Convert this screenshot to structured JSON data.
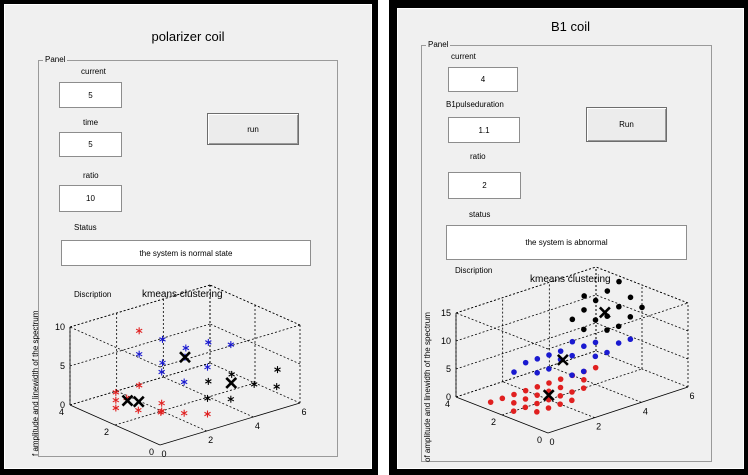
{
  "left_window": {
    "title": "polarizer coil",
    "panel_label": "Panel",
    "current_label": "current",
    "current_value": "5",
    "time_label": "time",
    "time_value": "5",
    "ratio_label": "ratio",
    "ratio_value": "10",
    "run_label": "run",
    "status_label": "Status",
    "status_value": "the system is normal state",
    "description_label": "Discription",
    "plot_title": "kmeans clustering",
    "ylabel": "f amplitude and linewidth of the spectrum"
  },
  "right_window": {
    "title": "B1 coil",
    "panel_label": "Panel",
    "current_label": "current",
    "current_value": "4",
    "pulse_label": "B1pulseduration",
    "pulse_value": "1.1",
    "ratio_label": "ratio",
    "ratio_value": "2",
    "run_label": "Run",
    "status_label": "status",
    "status_value": "the system is abnormal",
    "description_label": "Discription",
    "plot_title": "kmeans clustering",
    "ylabel": "of amplitude and linewidth of the spectrum"
  },
  "colors": {
    "red": "#e02020",
    "blue": "#1a1ad0",
    "black": "#000000"
  },
  "chart_data": [
    {
      "type": "scatter",
      "title": "kmeans clustering",
      "marker": "asterisk",
      "zlabel": "f amplitude and linewidth of the spectrum",
      "z_ticks": [
        "0",
        "5",
        "10"
      ],
      "x_ticks": [
        "0",
        "2",
        "4",
        "6"
      ],
      "y_ticks": [
        "0",
        "2",
        "4"
      ],
      "xlim": [
        0,
        6
      ],
      "ylim": [
        0,
        4
      ],
      "zlim": [
        0,
        10
      ],
      "series": [
        {
          "name": "cluster-red",
          "color": "red",
          "points": [
            [
              1,
              3,
              2
            ],
            [
              2,
              3,
              2
            ],
            [
              1,
              2,
              1
            ],
            [
              2,
              2,
              1
            ],
            [
              1,
              1,
              2
            ],
            [
              2,
              1,
              1
            ],
            [
              1,
              3,
              0
            ],
            [
              2,
              2,
              0
            ],
            [
              3,
              1,
              0
            ],
            [
              0.5,
              2,
              3
            ],
            [
              2,
              3,
              9
            ],
            [
              1,
              3,
              1
            ]
          ]
        },
        {
          "name": "cluster-blue",
          "color": "blue",
          "points": [
            [
              2,
              3,
              6
            ],
            [
              3,
              3,
              7
            ],
            [
              3,
              2,
              6
            ],
            [
              4,
              2,
              7
            ],
            [
              2,
              2,
              5
            ],
            [
              3,
              1,
              6
            ],
            [
              4,
              1,
              8
            ],
            [
              4,
              3,
              5
            ],
            [
              3,
              3,
              4
            ],
            [
              2,
              1,
              5
            ]
          ]
        },
        {
          "name": "cluster-black",
          "color": "black",
          "points": [
            [
              4,
              2,
              2
            ],
            [
              5,
              2,
              2
            ],
            [
              5,
              1,
              2
            ],
            [
              4,
              1,
              1
            ],
            [
              5,
              0,
              3
            ],
            [
              3,
              1,
              2
            ],
            [
              6,
              1,
              3
            ]
          ]
        }
      ],
      "centroids": [
        [
          1.5,
          2.5,
          1
        ],
        [
          3,
          2,
          6
        ],
        [
          4.5,
          1.5,
          2
        ],
        [
          1.5,
          3,
          0.5
        ]
      ]
    },
    {
      "type": "scatter",
      "title": "kmeans clustering",
      "marker": "dot",
      "zlabel": "of amplitude and linewidth of the spectrum",
      "z_ticks": [
        "0",
        "5",
        "10",
        "15"
      ],
      "x_ticks": [
        "0",
        "2",
        "4",
        "6"
      ],
      "y_ticks": [
        "0",
        "2",
        "4"
      ],
      "xlim": [
        0,
        6
      ],
      "ylim": [
        0,
        4
      ],
      "zlim": [
        0,
        15
      ],
      "series": [
        {
          "name": "cluster-red",
          "color": "red",
          "points": [
            [
              0.5,
              3,
              0
            ],
            [
              1,
              3,
              0
            ],
            [
              1.5,
              3,
              0
            ],
            [
              2,
              3,
              0
            ],
            [
              2.5,
              3,
              0
            ],
            [
              3,
              3,
              0
            ],
            [
              3.5,
              3,
              0
            ],
            [
              4,
              3,
              0
            ],
            [
              1,
              2.5,
              0
            ],
            [
              1.5,
              2.5,
              0
            ],
            [
              2,
              2.5,
              0
            ],
            [
              2.5,
              2.5,
              0
            ],
            [
              3,
              2.5,
              0
            ],
            [
              1,
              2,
              0
            ],
            [
              1.5,
              2,
              0
            ],
            [
              2,
              2,
              0
            ],
            [
              2.5,
              2,
              0
            ],
            [
              3,
              2,
              0
            ],
            [
              3.5,
              2,
              0
            ],
            [
              1,
              1.5,
              0
            ],
            [
              1.5,
              1.5,
              0
            ],
            [
              2,
              1.5,
              0
            ],
            [
              2.5,
              1.5,
              0
            ],
            [
              0.5,
              2,
              0
            ],
            [
              4,
              2.5,
              0
            ],
            [
              4.5,
              3,
              0
            ],
            [
              5,
              3,
              0
            ]
          ]
        },
        {
          "name": "cluster-blue",
          "color": "blue",
          "points": [
            [
              2,
              3,
              5
            ],
            [
              2.5,
              3,
              5
            ],
            [
              3,
              3,
              5
            ],
            [
              3.5,
              3,
              5
            ],
            [
              2,
              2.5,
              4
            ],
            [
              2.5,
              2.5,
              4
            ],
            [
              3,
              2.5,
              5
            ],
            [
              3.5,
              2.5,
              5
            ],
            [
              4,
              2.5,
              6
            ],
            [
              4.5,
              2.5,
              6
            ],
            [
              4,
              2,
              5
            ],
            [
              4.5,
              2,
              5
            ],
            [
              5,
              2,
              6
            ],
            [
              3,
              2,
              3
            ],
            [
              3.5,
              2,
              3
            ],
            [
              5.5,
              2,
              6
            ],
            [
              4,
              3,
              6
            ],
            [
              1.5,
              3,
              4
            ]
          ]
        },
        {
          "name": "cluster-black",
          "color": "black",
          "points": [
            [
              4,
              3,
              10
            ],
            [
              4.5,
              3,
              11
            ],
            [
              5,
              3,
              12
            ],
            [
              5.5,
              3,
              13
            ],
            [
              4,
              2.5,
              9
            ],
            [
              4.5,
              2.5,
              10
            ],
            [
              5,
              2.5,
              10
            ],
            [
              5.5,
              2.5,
              11
            ],
            [
              6,
              2.5,
              12
            ],
            [
              4.5,
              2,
              9
            ],
            [
              5,
              2,
              9
            ],
            [
              5.5,
              2,
              10
            ],
            [
              6,
              2,
              11
            ],
            [
              6,
              3,
              14
            ],
            [
              5,
              3.5,
              12
            ]
          ]
        }
      ],
      "centroids": [
        [
          2.2,
          2.2,
          0.2
        ],
        [
          3.2,
          2.6,
          4.5
        ],
        [
          5,
          2.6,
          10.5
        ]
      ]
    }
  ]
}
